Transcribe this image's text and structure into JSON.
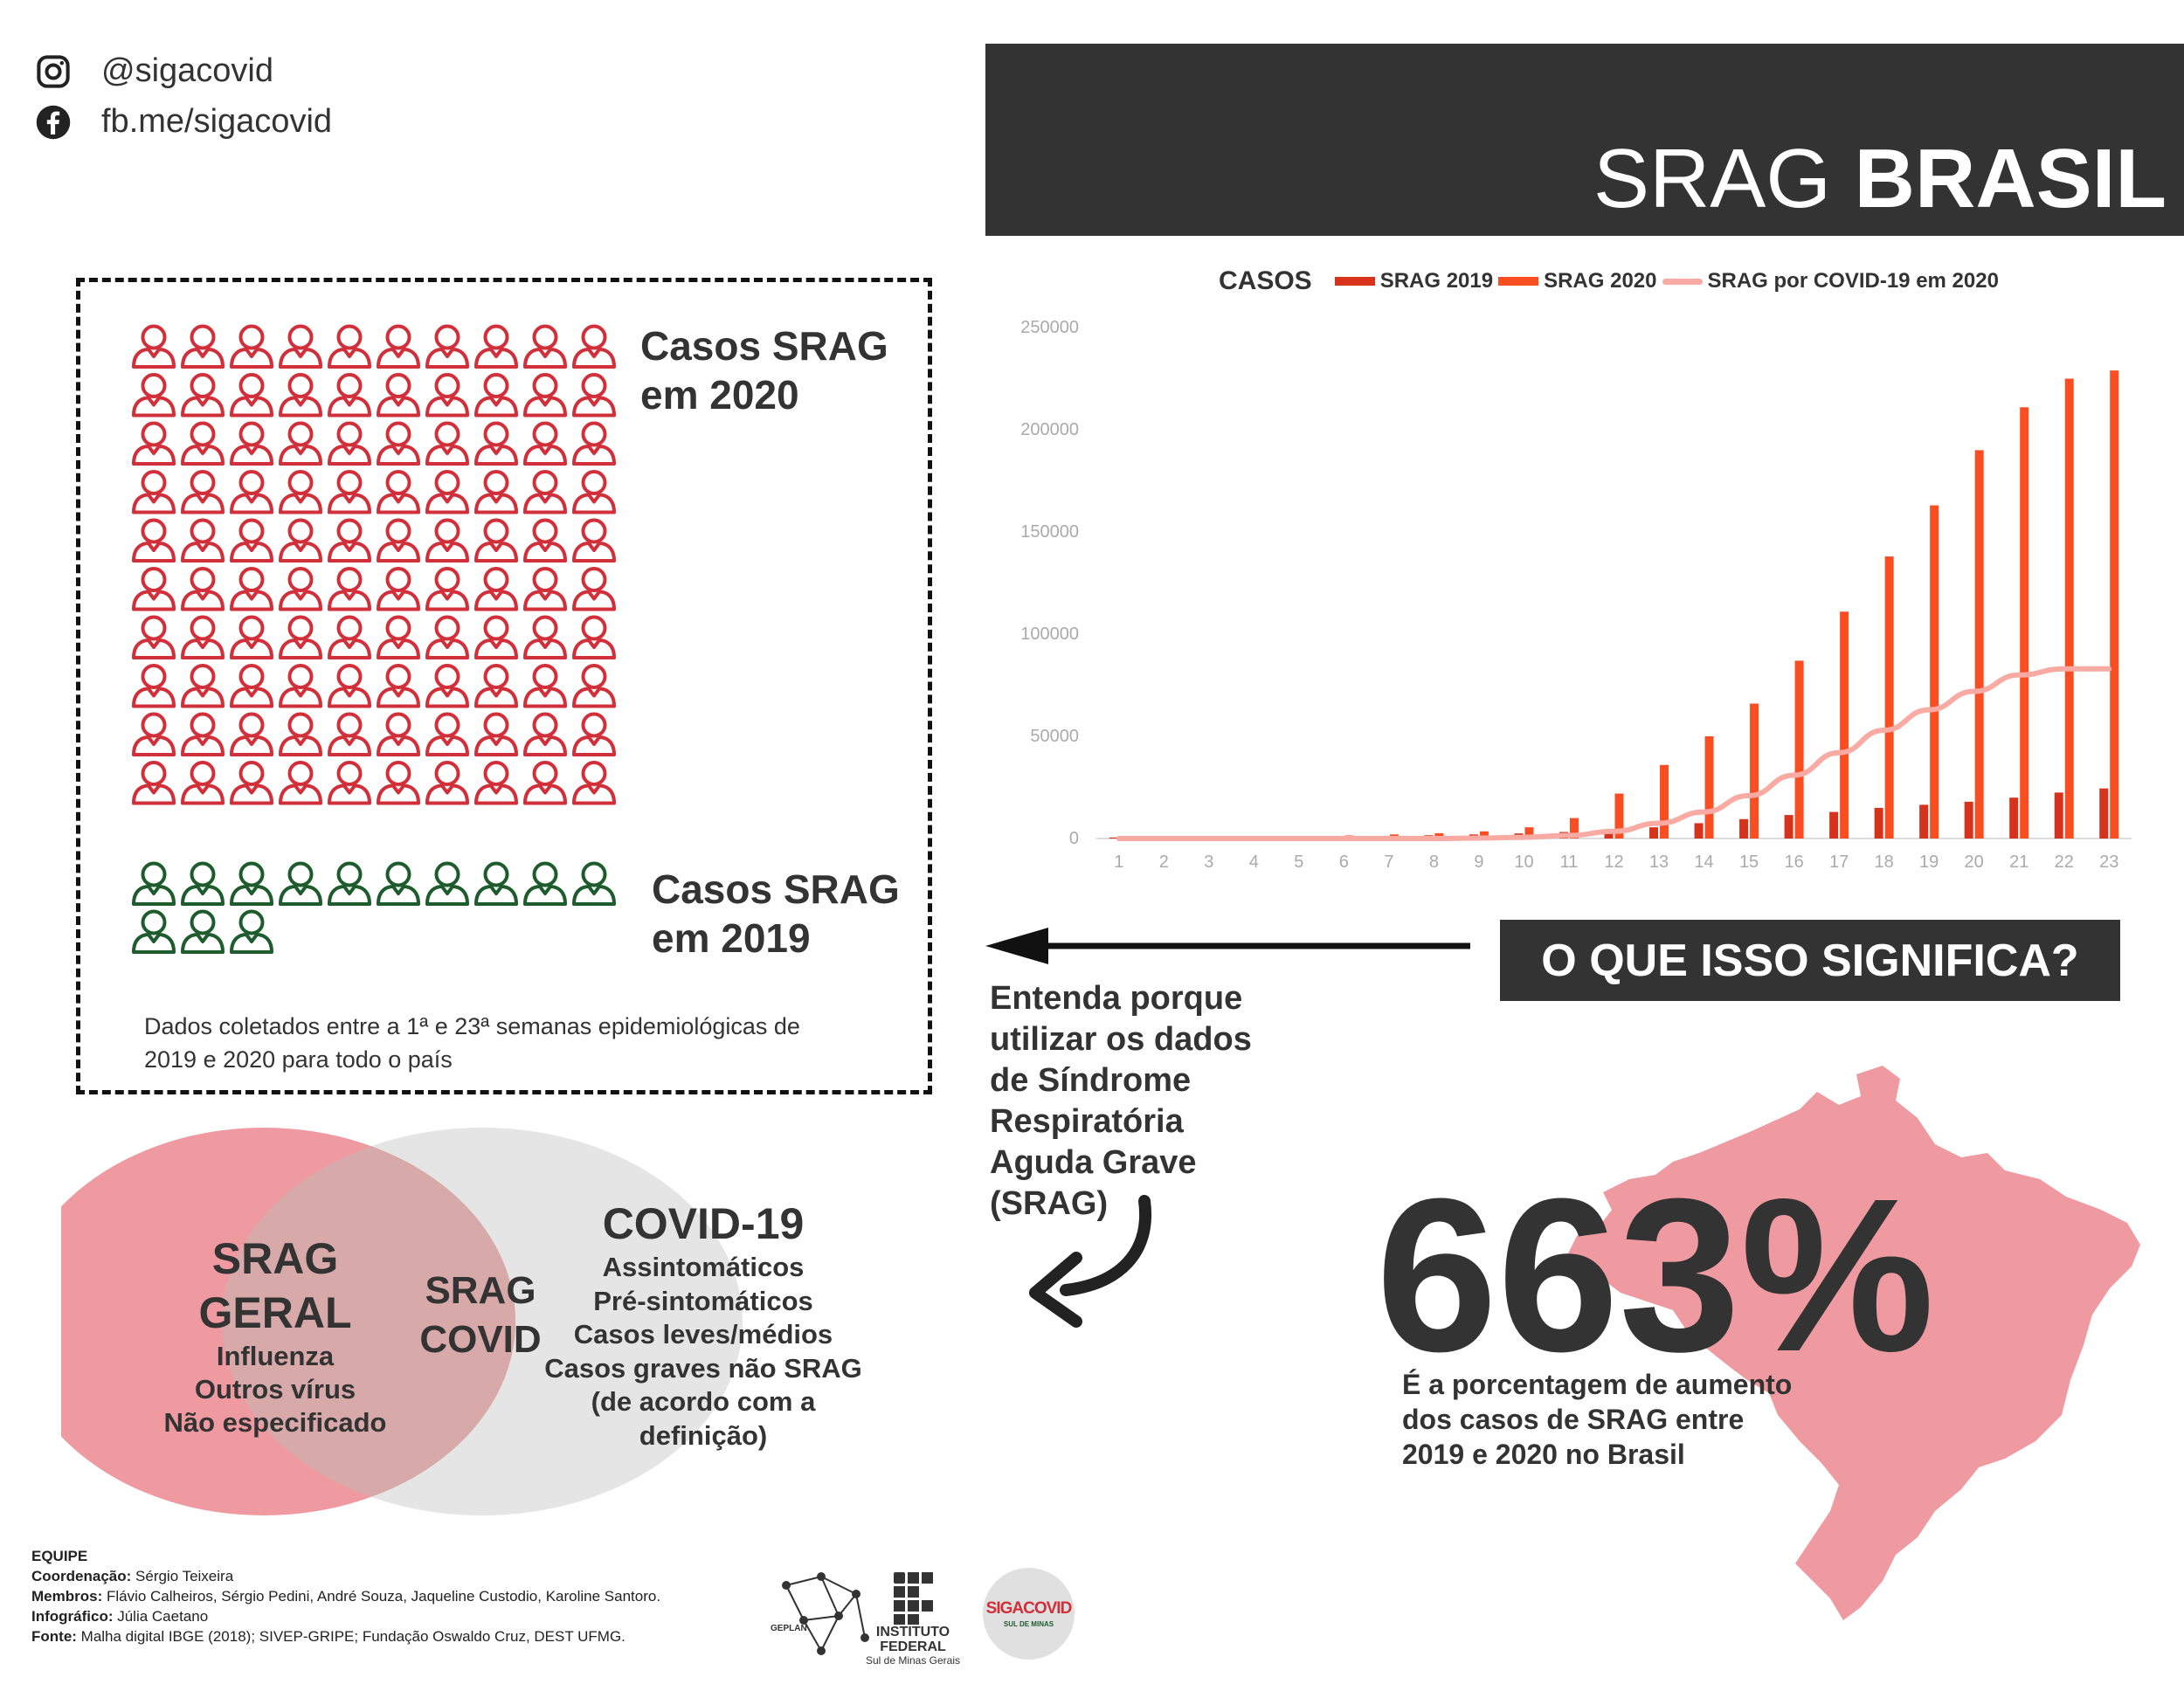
{
  "social": {
    "instagram": "@sigacovid",
    "facebook": "fb.me/sigacovid"
  },
  "header": {
    "title_light": "SRAG ",
    "title_bold": "BRASIL"
  },
  "pictogram": {
    "label_2020_line1": "Casos SRAG",
    "label_2020_line2": "em 2020",
    "label_2019_line1": "Casos SRAG",
    "label_2019_line2": "em 2019",
    "count_2020_icons": 100,
    "count_2019_icons": 13,
    "color_2020": "#d12f3a",
    "color_2019": "#1e5c2e",
    "note_line1": "Dados coletados entre a 1ª e 23ª semanas epidemiológicas de",
    "note_line2": "2019 e 2020 para todo o país"
  },
  "chart_data": {
    "type": "bar",
    "title": "CASOS",
    "legend_position": "top",
    "categories": [
      "1",
      "2",
      "3",
      "4",
      "5",
      "6",
      "7",
      "8",
      "9",
      "10",
      "11",
      "12",
      "13",
      "14",
      "15",
      "16",
      "17",
      "18",
      "19",
      "20",
      "21",
      "22",
      "23"
    ],
    "ylim": [
      0,
      250000
    ],
    "yticks": [
      "0",
      "50000",
      "100000",
      "150000",
      "200000",
      "250000"
    ],
    "series": [
      {
        "name": "SRAG 2019",
        "kind": "bar",
        "color": "#d7331c",
        "values": [
          500,
          600,
          700,
          800,
          900,
          1100,
          1300,
          1600,
          2000,
          2500,
          3200,
          4000,
          5500,
          7500,
          9500,
          11500,
          13000,
          15000,
          16500,
          18000,
          20000,
          22500,
          24500
        ]
      },
      {
        "name": "SRAG 2020",
        "kind": "bar",
        "color": "#fb4d22",
        "values": [
          700,
          800,
          900,
          1000,
          1200,
          1500,
          2000,
          2600,
          3500,
          5500,
          10000,
          22000,
          36000,
          50000,
          66000,
          87000,
          111000,
          138000,
          163000,
          190000,
          211000,
          225000,
          229000
        ]
      },
      {
        "name": "SRAG por COVID-19 em 2020",
        "kind": "line",
        "color": "#f9aaa3",
        "values": [
          0,
          0,
          0,
          0,
          0,
          0,
          0,
          0,
          200,
          600,
          1500,
          3500,
          7500,
          13000,
          21000,
          31000,
          42000,
          53000,
          63000,
          72000,
          80000,
          83000,
          83000
        ]
      }
    ]
  },
  "callout": {
    "question": "O QUE ISSO SIGNIFICA?",
    "explain_lines": [
      "Entenda porque",
      "utilizar os dados",
      "de Síndrome",
      "Respiratória",
      "Aguda Grave",
      "(SRAG)"
    ]
  },
  "stat": {
    "value": "663%",
    "desc_line1": "É a porcentagem de aumento",
    "desc_line2": "dos casos de SRAG entre",
    "desc_line3": "2019 e 2020 no Brasil",
    "map_color": "#ee9aa0"
  },
  "venn": {
    "left_title": "SRAG GERAL",
    "left_items": [
      "Influenza",
      "Outros vírus",
      "Não especificado"
    ],
    "center_line1": "SRAG",
    "center_line2": "COVID",
    "right_title": "COVID-19",
    "right_items": [
      "Assintomáticos",
      "Pré-sintomáticos",
      "Casos leves/médios",
      "Casos graves não SRAG",
      "(de acordo com a",
      "definição)"
    ],
    "left_color": "#ee9aa0",
    "right_color": "#e5e5e5"
  },
  "footer": {
    "heading": "EQUIPE",
    "coord_label": "Coordenação:",
    "coord_value": " Sérgio Teixeira",
    "members_label": "Membros:",
    "members_value": " Flávio Calheiros, Sérgio Pedini, André Souza, Jaqueline Custodio, Karoline Santoro.",
    "info_label": "Infográfico:",
    "info_value": " Júlia Caetano",
    "source_label": "Fonte:",
    "source_value": " Malha digital IBGE (2018); SIVEP-GRIPE; Fundação Oswaldo Cruz, DEST UFMG."
  },
  "logos": {
    "geplan": "GEPLAN",
    "if_line1": "INSTITUTO",
    "if_line2": "FEDERAL",
    "if_line3": "Sul de Minas Gerais",
    "siga_a": "SIGA",
    "siga_b": "COVID",
    "siga_sub": "SUL DE MINAS"
  }
}
